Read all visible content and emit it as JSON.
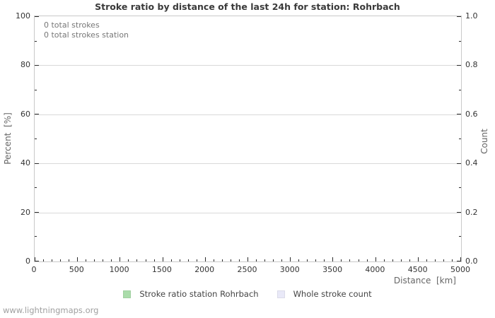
{
  "chart_data": {
    "type": "line",
    "title": "Stroke ratio by distance of the last 24h for station: Rohrbach",
    "annotations": [
      "0 total strokes",
      "0 total strokes station"
    ],
    "x_axis": {
      "label": "Distance  [km]",
      "min": 0,
      "max": 5000,
      "minor_step": 100,
      "major_step": 500,
      "tick_labels": [
        "0",
        "500",
        "1000",
        "1500",
        "2000",
        "2500",
        "3000",
        "3500",
        "4000",
        "4500",
        "5000"
      ]
    },
    "y_axis_left": {
      "label": "Percent  [%]",
      "min": 0,
      "max": 100,
      "minor_step": 10,
      "major_step": 20,
      "tick_labels": [
        "0",
        "20",
        "40",
        "60",
        "80",
        "100"
      ]
    },
    "y_axis_right": {
      "label": "Count",
      "min": 0,
      "max": 1,
      "minor_step": 0.1,
      "major_step": 0.2,
      "tick_labels": [
        "0.0",
        "0.2",
        "0.4",
        "0.6",
        "0.8",
        "1.0"
      ]
    },
    "grid": {
      "horizontal": true,
      "vertical": false
    },
    "legend": {
      "position": "bottom-center",
      "entries": [
        {
          "label": "Stroke ratio station Rohrbach",
          "color": "#aadcaa"
        },
        {
          "label": "Whole stroke count",
          "color": "#e9e9f8"
        }
      ]
    },
    "series": [
      {
        "name": "Stroke ratio station Rohrbach",
        "color": "#aadcaa",
        "x": [],
        "y": []
      },
      {
        "name": "Whole stroke count",
        "color": "#e9e9f8",
        "x": [],
        "y": []
      }
    ]
  },
  "colors": {
    "grid_line": "#d9d9d9",
    "frame": "#c9c9c9",
    "tick": "#2b2b2b",
    "tick_label": "#333333",
    "axis_label": "#666666",
    "annotation": "#777777",
    "title": "#3a3a3a",
    "legend_text": "#444444",
    "footer_text": "#a0a0a0"
  },
  "footer": {
    "link_text": "www.lightningmaps.org"
  }
}
